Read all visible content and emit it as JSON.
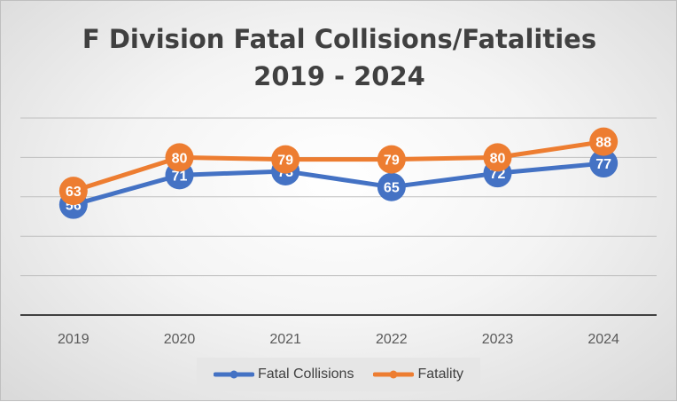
{
  "chart_data": {
    "type": "line",
    "title": [
      "F Division Fatal Collisions/Fatalities",
      "2019 - 2024"
    ],
    "categories": [
      "2019",
      "2020",
      "2021",
      "2022",
      "2023",
      "2024"
    ],
    "series": [
      {
        "name": "Fatal Collisions",
        "values": [
          56,
          71,
          73,
          65,
          72,
          77
        ],
        "color": "#4472C4"
      },
      {
        "name": "Fatality",
        "values": [
          63,
          80,
          79,
          79,
          80,
          88
        ],
        "color": "#ED7D31"
      }
    ],
    "ylim": [
      0,
      100
    ],
    "grid": true,
    "legend_position": "bottom",
    "data_labels": true
  }
}
